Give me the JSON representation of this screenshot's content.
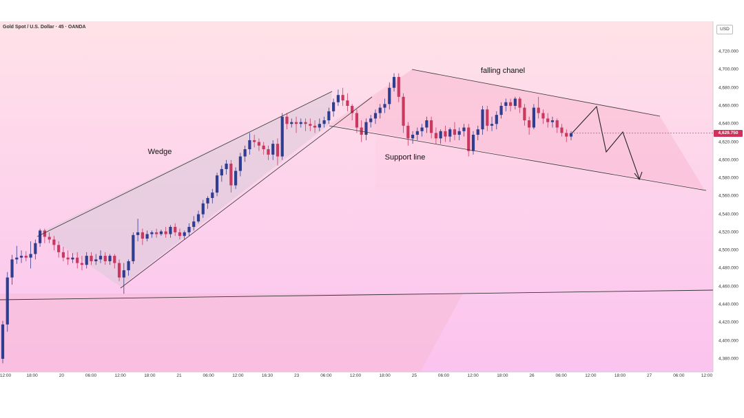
{
  "header": {
    "symbol": "Gold Spot / U.S. Dollar · 45 · OANDA",
    "currency": "USD"
  },
  "colors": {
    "background_top": "#ffe0e6",
    "background_bottom": "#fbc4ee",
    "bull_candle": "#2f3d8f",
    "bear_candle": "#c8385f",
    "wedge_fill": "#d4c9d8",
    "channel_fill": "#f9b9cf",
    "price_tag": "#d1305a",
    "trendline": "#333333"
  },
  "chart_data": {
    "type": "candlestick",
    "y_range": [
      4370,
      4730
    ],
    "y_ticks": [
      "4,380.000",
      "4,400.000",
      "4,420.000",
      "4,440.000",
      "4,460.000",
      "4,480.000",
      "4,500.000",
      "4,520.000",
      "4,540.000",
      "4,560.000",
      "4,580.000",
      "4,600.000",
      "4,620.000",
      "4,640.000",
      "4,660.000",
      "4,680.000",
      "4,700.000",
      "4,720.000"
    ],
    "y_tick_values": [
      4380,
      4400,
      4420,
      4440,
      4460,
      4480,
      4500,
      4520,
      4540,
      4560,
      4580,
      4600,
      4620,
      4640,
      4660,
      4680,
      4700,
      4720
    ],
    "x_ticks": [
      "12:00",
      "18:00",
      "20",
      "06:00",
      "12:00",
      "18:00",
      "21",
      "06:00",
      "12:00",
      "16:30",
      "23",
      "06:00",
      "12:00",
      "18:00",
      "25",
      "06:00",
      "12:00",
      "18:00",
      "26",
      "06:00",
      "12:00",
      "18:00",
      "27",
      "06:00",
      "12:00"
    ],
    "last_price": "4,629.750",
    "last_price_value": 4629.75,
    "annotations": {
      "wedge": "Wedge",
      "support": "Support line",
      "channel": "falling chanel"
    },
    "candles": [
      {
        "o": 4380,
        "h": 4422,
        "c": 4418,
        "l": 4375
      },
      {
        "o": 4418,
        "h": 4476,
        "c": 4470,
        "l": 4410
      },
      {
        "o": 4470,
        "h": 4495,
        "c": 4490,
        "l": 4462
      },
      {
        "o": 4490,
        "h": 4505,
        "c": 4492,
        "l": 4485
      },
      {
        "o": 4492,
        "h": 4500,
        "c": 4494,
        "l": 4486
      },
      {
        "o": 4494,
        "h": 4499,
        "c": 4492,
        "l": 4488
      },
      {
        "o": 4492,
        "h": 4510,
        "c": 4496,
        "l": 4480
      },
      {
        "o": 4496,
        "h": 4512,
        "c": 4508,
        "l": 4490
      },
      {
        "o": 4508,
        "h": 4524,
        "c": 4522,
        "l": 4504
      },
      {
        "o": 4522,
        "h": 4524,
        "c": 4515,
        "l": 4508
      },
      {
        "o": 4515,
        "h": 4520,
        "c": 4512,
        "l": 4508
      },
      {
        "o": 4512,
        "h": 4516,
        "c": 4506,
        "l": 4500
      },
      {
        "o": 4506,
        "h": 4510,
        "c": 4498,
        "l": 4492
      },
      {
        "o": 4498,
        "h": 4504,
        "c": 4492,
        "l": 4488
      },
      {
        "o": 4492,
        "h": 4500,
        "c": 4490,
        "l": 4484
      },
      {
        "o": 4490,
        "h": 4497,
        "c": 4492,
        "l": 4486
      },
      {
        "o": 4492,
        "h": 4498,
        "c": 4486,
        "l": 4480
      },
      {
        "o": 4486,
        "h": 4494,
        "c": 4484,
        "l": 4478
      },
      {
        "o": 4484,
        "h": 4498,
        "c": 4494,
        "l": 4480
      },
      {
        "o": 4494,
        "h": 4498,
        "c": 4488,
        "l": 4484
      },
      {
        "o": 4488,
        "h": 4496,
        "c": 4490,
        "l": 4484
      },
      {
        "o": 4490,
        "h": 4500,
        "c": 4494,
        "l": 4486
      },
      {
        "o": 4494,
        "h": 4498,
        "c": 4488,
        "l": 4484
      },
      {
        "o": 4488,
        "h": 4496,
        "c": 4494,
        "l": 4484
      },
      {
        "o": 4494,
        "h": 4496,
        "c": 4486,
        "l": 4480
      },
      {
        "o": 4486,
        "h": 4490,
        "c": 4470,
        "l": 4466
      },
      {
        "o": 4470,
        "h": 4486,
        "c": 4478,
        "l": 4452
      },
      {
        "o": 4478,
        "h": 4490,
        "c": 4488,
        "l": 4472
      },
      {
        "o": 4488,
        "h": 4520,
        "c": 4517,
        "l": 4485
      },
      {
        "o": 4517,
        "h": 4535,
        "c": 4520,
        "l": 4510
      },
      {
        "o": 4520,
        "h": 4524,
        "c": 4513,
        "l": 4506
      },
      {
        "o": 4513,
        "h": 4522,
        "c": 4518,
        "l": 4510
      },
      {
        "o": 4518,
        "h": 4522,
        "c": 4520,
        "l": 4514
      },
      {
        "o": 4520,
        "h": 4524,
        "c": 4518,
        "l": 4514
      },
      {
        "o": 4518,
        "h": 4523,
        "c": 4521,
        "l": 4516
      },
      {
        "o": 4521,
        "h": 4526,
        "c": 4518,
        "l": 4514
      },
      {
        "o": 4518,
        "h": 4528,
        "c": 4526,
        "l": 4514
      },
      {
        "o": 4526,
        "h": 4530,
        "c": 4520,
        "l": 4516
      },
      {
        "o": 4520,
        "h": 4524,
        "c": 4516,
        "l": 4512
      },
      {
        "o": 4516,
        "h": 4522,
        "c": 4520,
        "l": 4512
      },
      {
        "o": 4520,
        "h": 4530,
        "c": 4526,
        "l": 4516
      },
      {
        "o": 4526,
        "h": 4538,
        "c": 4532,
        "l": 4522
      },
      {
        "o": 4532,
        "h": 4544,
        "c": 4540,
        "l": 4530
      },
      {
        "o": 4540,
        "h": 4556,
        "c": 4552,
        "l": 4536
      },
      {
        "o": 4552,
        "h": 4560,
        "c": 4558,
        "l": 4546
      },
      {
        "o": 4558,
        "h": 4568,
        "c": 4564,
        "l": 4552
      },
      {
        "o": 4564,
        "h": 4586,
        "c": 4583,
        "l": 4560
      },
      {
        "o": 4583,
        "h": 4594,
        "c": 4590,
        "l": 4576
      },
      {
        "o": 4590,
        "h": 4600,
        "c": 4596,
        "l": 4584
      },
      {
        "o": 4596,
        "h": 4600,
        "c": 4572,
        "l": 4564
      },
      {
        "o": 4572,
        "h": 4592,
        "c": 4588,
        "l": 4568
      },
      {
        "o": 4588,
        "h": 4608,
        "c": 4604,
        "l": 4582
      },
      {
        "o": 4604,
        "h": 4616,
        "c": 4612,
        "l": 4598
      },
      {
        "o": 4612,
        "h": 4630,
        "c": 4622,
        "l": 4606
      },
      {
        "o": 4622,
        "h": 4628,
        "c": 4620,
        "l": 4614
      },
      {
        "o": 4620,
        "h": 4624,
        "c": 4616,
        "l": 4610
      },
      {
        "o": 4616,
        "h": 4620,
        "c": 4612,
        "l": 4606
      },
      {
        "o": 4612,
        "h": 4616,
        "c": 4606,
        "l": 4600
      },
      {
        "o": 4606,
        "h": 4622,
        "c": 4618,
        "l": 4600
      },
      {
        "o": 4618,
        "h": 4624,
        "c": 4604,
        "l": 4594
      },
      {
        "o": 4604,
        "h": 4652,
        "c": 4648,
        "l": 4600
      },
      {
        "o": 4648,
        "h": 4652,
        "c": 4640,
        "l": 4634
      },
      {
        "o": 4640,
        "h": 4646,
        "c": 4642,
        "l": 4636
      },
      {
        "o": 4642,
        "h": 4648,
        "c": 4640,
        "l": 4630
      },
      {
        "o": 4640,
        "h": 4646,
        "c": 4642,
        "l": 4636
      },
      {
        "o": 4642,
        "h": 4646,
        "c": 4640,
        "l": 4632
      },
      {
        "o": 4640,
        "h": 4646,
        "c": 4638,
        "l": 4632
      },
      {
        "o": 4638,
        "h": 4644,
        "c": 4636,
        "l": 4630
      },
      {
        "o": 4636,
        "h": 4646,
        "c": 4640,
        "l": 4632
      },
      {
        "o": 4640,
        "h": 4648,
        "c": 4644,
        "l": 4636
      },
      {
        "o": 4644,
        "h": 4658,
        "c": 4654,
        "l": 4640
      },
      {
        "o": 4654,
        "h": 4668,
        "c": 4664,
        "l": 4648
      },
      {
        "o": 4664,
        "h": 4678,
        "c": 4672,
        "l": 4660
      },
      {
        "o": 4672,
        "h": 4680,
        "c": 4666,
        "l": 4660
      },
      {
        "o": 4666,
        "h": 4674,
        "c": 4660,
        "l": 4654
      },
      {
        "o": 4660,
        "h": 4662,
        "c": 4652,
        "l": 4644
      },
      {
        "o": 4652,
        "h": 4656,
        "c": 4636,
        "l": 4630
      },
      {
        "o": 4636,
        "h": 4644,
        "c": 4628,
        "l": 4620
      },
      {
        "o": 4628,
        "h": 4646,
        "c": 4642,
        "l": 4622
      },
      {
        "o": 4642,
        "h": 4650,
        "c": 4646,
        "l": 4636
      },
      {
        "o": 4646,
        "h": 4656,
        "c": 4652,
        "l": 4640
      },
      {
        "o": 4652,
        "h": 4662,
        "c": 4658,
        "l": 4646
      },
      {
        "o": 4658,
        "h": 4668,
        "c": 4662,
        "l": 4652
      },
      {
        "o": 4662,
        "h": 4686,
        "c": 4680,
        "l": 4656
      },
      {
        "o": 4680,
        "h": 4696,
        "c": 4692,
        "l": 4676
      },
      {
        "o": 4692,
        "h": 4696,
        "c": 4670,
        "l": 4664
      },
      {
        "o": 4670,
        "h": 4674,
        "c": 4638,
        "l": 4630
      },
      {
        "o": 4638,
        "h": 4642,
        "c": 4624,
        "l": 4616
      },
      {
        "o": 4624,
        "h": 4632,
        "c": 4628,
        "l": 4618
      },
      {
        "o": 4628,
        "h": 4636,
        "c": 4632,
        "l": 4622
      },
      {
        "o": 4632,
        "h": 4640,
        "c": 4636,
        "l": 4626
      },
      {
        "o": 4636,
        "h": 4648,
        "c": 4644,
        "l": 4630
      },
      {
        "o": 4644,
        "h": 4648,
        "c": 4630,
        "l": 4624
      },
      {
        "o": 4630,
        "h": 4636,
        "c": 4624,
        "l": 4618
      },
      {
        "o": 4624,
        "h": 4634,
        "c": 4632,
        "l": 4618
      },
      {
        "o": 4632,
        "h": 4638,
        "c": 4626,
        "l": 4620
      },
      {
        "o": 4626,
        "h": 4636,
        "c": 4634,
        "l": 4620
      },
      {
        "o": 4634,
        "h": 4642,
        "c": 4628,
        "l": 4622
      },
      {
        "o": 4628,
        "h": 4636,
        "c": 4632,
        "l": 4622
      },
      {
        "o": 4632,
        "h": 4640,
        "c": 4636,
        "l": 4626
      },
      {
        "o": 4636,
        "h": 4640,
        "c": 4610,
        "l": 4604
      },
      {
        "o": 4610,
        "h": 4632,
        "c": 4628,
        "l": 4606
      },
      {
        "o": 4628,
        "h": 4638,
        "c": 4634,
        "l": 4622
      },
      {
        "o": 4634,
        "h": 4660,
        "c": 4656,
        "l": 4628
      },
      {
        "o": 4656,
        "h": 4660,
        "c": 4638,
        "l": 4632
      },
      {
        "o": 4638,
        "h": 4648,
        "c": 4640,
        "l": 4632
      },
      {
        "o": 4640,
        "h": 4654,
        "c": 4650,
        "l": 4634
      },
      {
        "o": 4650,
        "h": 4664,
        "c": 4660,
        "l": 4646
      },
      {
        "o": 4660,
        "h": 4668,
        "c": 4664,
        "l": 4654
      },
      {
        "o": 4664,
        "h": 4668,
        "c": 4660,
        "l": 4654
      },
      {
        "o": 4660,
        "h": 4670,
        "c": 4668,
        "l": 4656
      },
      {
        "o": 4668,
        "h": 4670,
        "c": 4658,
        "l": 4652
      },
      {
        "o": 4658,
        "h": 4662,
        "c": 4644,
        "l": 4638
      },
      {
        "o": 4644,
        "h": 4648,
        "c": 4636,
        "l": 4628
      },
      {
        "o": 4636,
        "h": 4662,
        "c": 4658,
        "l": 4634
      },
      {
        "o": 4658,
        "h": 4670,
        "c": 4652,
        "l": 4646
      },
      {
        "o": 4652,
        "h": 4656,
        "c": 4646,
        "l": 4640
      },
      {
        "o": 4646,
        "h": 4652,
        "c": 4642,
        "l": 4636
      },
      {
        "o": 4642,
        "h": 4648,
        "c": 4644,
        "l": 4636
      },
      {
        "o": 4644,
        "h": 4646,
        "c": 4636,
        "l": 4630
      },
      {
        "o": 4636,
        "h": 4640,
        "c": 4630,
        "l": 4626
      },
      {
        "o": 4630,
        "h": 4634,
        "c": 4626,
        "l": 4620
      },
      {
        "o": 4626,
        "h": 4632,
        "c": 4629.75,
        "l": 4622
      }
    ]
  }
}
